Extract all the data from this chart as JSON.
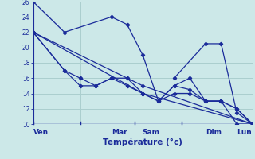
{
  "title": "Température (°c)",
  "background_color": "#cce8e8",
  "grid_color": "#aacece",
  "line_color": "#1a2b9a",
  "xlim": [
    0,
    14
  ],
  "ylim": [
    10,
    26
  ],
  "yticks": [
    10,
    12,
    14,
    16,
    18,
    20,
    22,
    24,
    26
  ],
  "day_positions": [
    0.5,
    5.5,
    7.5,
    11.5,
    13.5
  ],
  "day_labels": [
    "Ven",
    "Mar",
    "Sam",
    "Dim",
    "Lun"
  ],
  "day_vlines": [
    3.0,
    6.5,
    9.5,
    13.0
  ],
  "series": [
    {
      "x": [
        0,
        2,
        5,
        6,
        7,
        8,
        9,
        10,
        11,
        12,
        13,
        14
      ],
      "y": [
        26,
        22,
        24,
        23,
        19,
        13,
        15,
        16,
        13,
        13,
        10,
        10
      ]
    },
    {
      "x": [
        0,
        2,
        3,
        4,
        5,
        6,
        7,
        8,
        9,
        10,
        11,
        12,
        13,
        14
      ],
      "y": [
        22,
        17,
        16,
        15,
        16,
        16,
        14,
        13,
        15,
        14.5,
        13,
        13,
        12,
        10
      ]
    },
    {
      "x": [
        0,
        2,
        3,
        4,
        5,
        6,
        7,
        8,
        9,
        10,
        11,
        12,
        13,
        14
      ],
      "y": [
        22,
        17,
        15,
        15,
        16,
        15,
        14,
        13,
        14,
        14,
        13,
        13,
        12,
        10
      ]
    },
    {
      "x": [
        0,
        7,
        14
      ],
      "y": [
        22,
        15,
        10
      ]
    },
    {
      "x": [
        0,
        7,
        14
      ],
      "y": [
        22,
        14,
        10
      ]
    },
    {
      "x": [
        9,
        11,
        12,
        13,
        14
      ],
      "y": [
        16,
        20.5,
        20.5,
        11.5,
        10
      ]
    }
  ]
}
